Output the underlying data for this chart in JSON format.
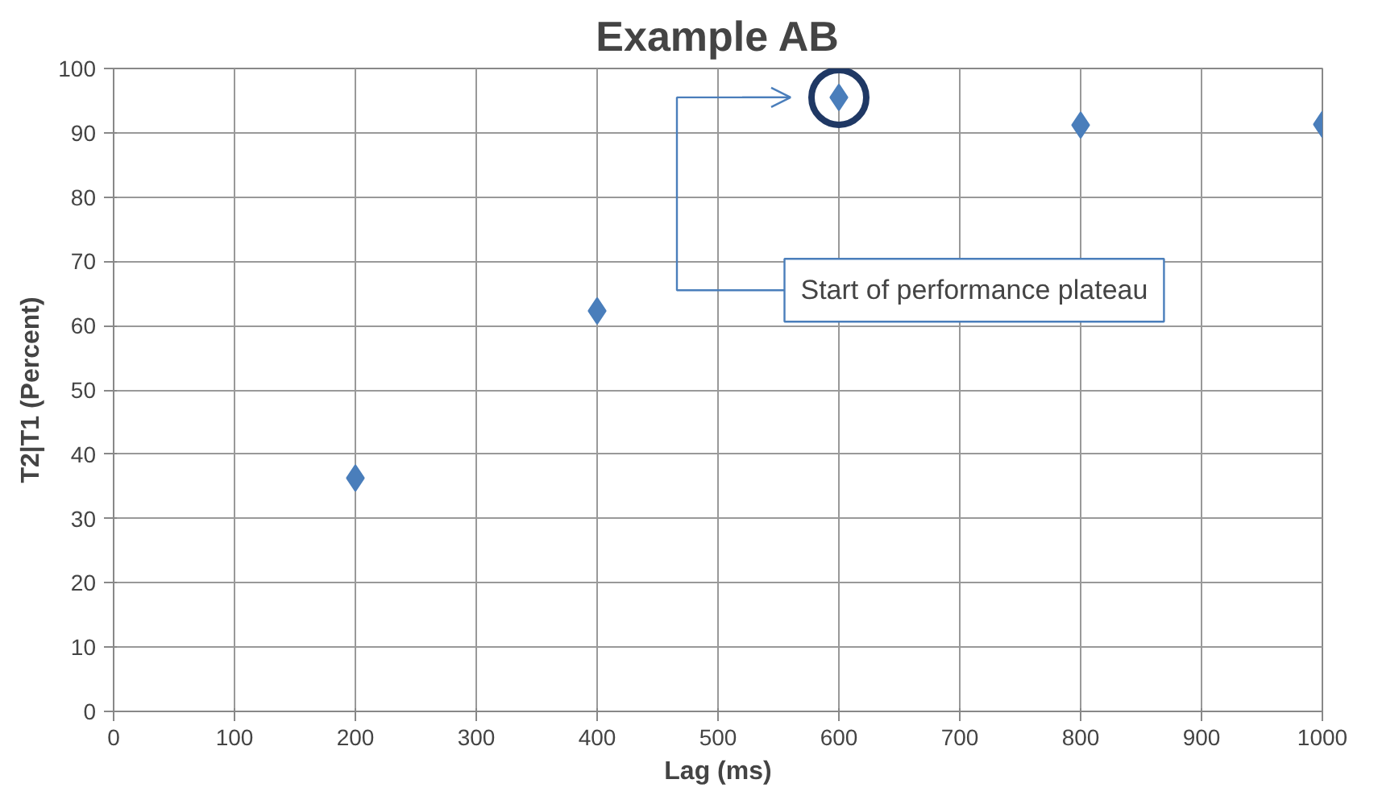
{
  "chart_data": {
    "type": "scatter",
    "title": "Example AB",
    "xlabel": "Lag (ms)",
    "ylabel": "T2|T1 (Percent)",
    "x": [
      200,
      400,
      600,
      800,
      1000
    ],
    "series": [
      {
        "color": "#4a7ebb",
        "values": [
          36.3,
          62.3,
          95.5,
          91.2,
          91.3
        ]
      }
    ],
    "marker": "diamond",
    "grid": true,
    "xlim": [
      0,
      1000
    ],
    "xticks": [
      0,
      100,
      200,
      300,
      400,
      500,
      600,
      700,
      800,
      900,
      1000
    ],
    "ylim": [
      0,
      100
    ],
    "yticks": [
      0,
      10,
      20,
      30,
      40,
      50,
      60,
      70,
      80,
      90,
      100
    ],
    "annotations": [
      "Start of performance plateau"
    ]
  }
}
